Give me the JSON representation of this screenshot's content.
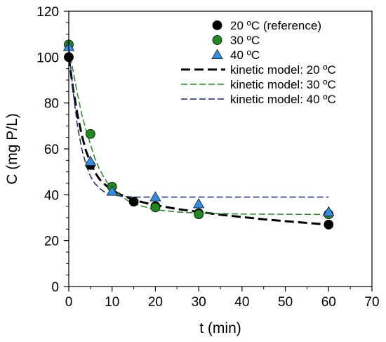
{
  "chart_data": {
    "type": "scatter",
    "title": "",
    "xlabel": "t (min)",
    "ylabel": "C (mg P/L)",
    "xlim": [
      0,
      70
    ],
    "ylim": [
      0,
      120
    ],
    "xticks": [
      0,
      10,
      20,
      30,
      40,
      50,
      60,
      70
    ],
    "yticks": [
      0,
      20,
      40,
      60,
      80,
      100,
      120
    ],
    "grid": false,
    "legend_position": "top-right",
    "series": [
      {
        "name": "20 ºC (reference)",
        "kind": "markers",
        "marker": "circle",
        "color": "#000000",
        "x": [
          0,
          5,
          15,
          20,
          30,
          60
        ],
        "y": [
          100,
          53,
          37,
          35,
          32,
          27
        ]
      },
      {
        "name": "30 ºC",
        "kind": "markers",
        "marker": "circle",
        "color": "#1f8a1f",
        "x": [
          0,
          5,
          10,
          20,
          30,
          60
        ],
        "y": [
          105.5,
          66.5,
          43.5,
          34.5,
          31.5,
          31.5
        ]
      },
      {
        "name": "40 ºC",
        "kind": "markers",
        "marker": "triangle",
        "color": "#2e8fe6",
        "x": [
          0,
          5,
          10,
          20,
          30,
          60
        ],
        "y": [
          104.5,
          54.5,
          41.5,
          39,
          36,
          32.5
        ]
      },
      {
        "name": "kinetic model: 20 ºC",
        "kind": "line",
        "dash": "long",
        "stroke": 3,
        "color": "#000000",
        "x": [
          0,
          1,
          2,
          3,
          4,
          5,
          6,
          7,
          8,
          9,
          10,
          12,
          14,
          16,
          18,
          20,
          25,
          30,
          35,
          40,
          45,
          50,
          55,
          60
        ],
        "y": [
          100,
          86,
          75,
          66,
          59,
          54,
          50,
          47,
          45,
          43.5,
          42,
          40,
          38.5,
          37.3,
          36.3,
          35.5,
          33.8,
          32.5,
          31.3,
          30.3,
          29.3,
          28.5,
          27.7,
          27
        ]
      },
      {
        "name": "kinetic model: 30 ºC",
        "kind": "line",
        "dash": "medium",
        "stroke": 1.5,
        "color": "#1f8a1f",
        "x": [
          0,
          1,
          2,
          3,
          4,
          5,
          6,
          7,
          8,
          9,
          10,
          12,
          14,
          16,
          18,
          20,
          25,
          30,
          40,
          50,
          60
        ],
        "y": [
          104,
          94,
          84,
          75,
          68,
          62,
          56,
          51.5,
          48,
          45,
          43,
          39.5,
          37,
          35.5,
          34.5,
          33.5,
          32.5,
          32,
          31.6,
          31.5,
          31.4
        ]
      },
      {
        "name": "kinetic model: 40 ºC",
        "kind": "line",
        "dash": "medium",
        "stroke": 1.5,
        "color": "#1a237e",
        "x": [
          0,
          1,
          2,
          3,
          4,
          5,
          6,
          7,
          8,
          9,
          10,
          12,
          15,
          20,
          30,
          60
        ],
        "y": [
          104,
          85,
          70,
          60,
          53,
          48,
          45,
          43,
          41.5,
          40.5,
          40,
          39.4,
          39,
          39,
          39,
          39
        ]
      }
    ]
  }
}
